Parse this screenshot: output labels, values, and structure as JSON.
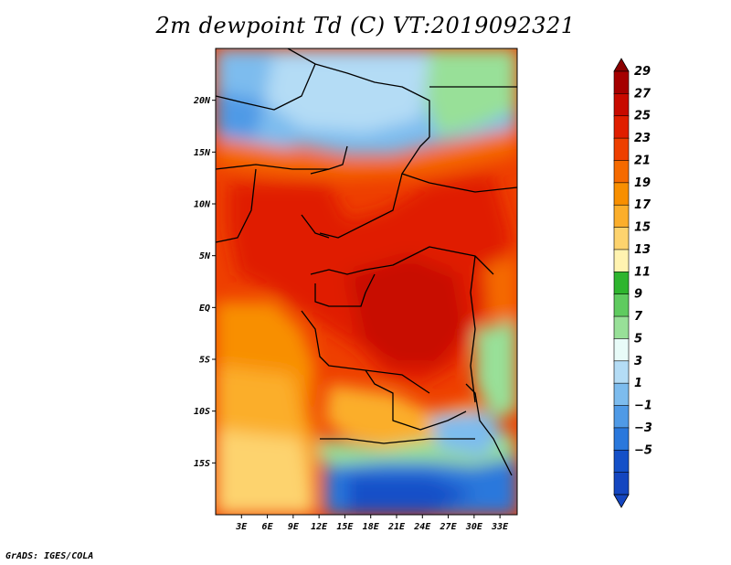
{
  "title": "2m dewpoint Td (C) VT:2019092321",
  "credit": "GrADS: IGES/COLA",
  "map": {
    "lon_range": [
      0,
      35
    ],
    "lat_range": [
      -20,
      25
    ],
    "lat_ticks": [
      {
        "value": 20,
        "label": "20N"
      },
      {
        "value": 15,
        "label": "15N"
      },
      {
        "value": 10,
        "label": "10N"
      },
      {
        "value": 5,
        "label": "5N"
      },
      {
        "value": 0,
        "label": "EQ"
      },
      {
        "value": -5,
        "label": "5S"
      },
      {
        "value": -10,
        "label": "10S"
      },
      {
        "value": -15,
        "label": "15S"
      }
    ],
    "lon_ticks": [
      {
        "value": 3,
        "label": "3E"
      },
      {
        "value": 6,
        "label": "6E"
      },
      {
        "value": 9,
        "label": "9E"
      },
      {
        "value": 12,
        "label": "12E"
      },
      {
        "value": 15,
        "label": "15E"
      },
      {
        "value": 18,
        "label": "18E"
      },
      {
        "value": 21,
        "label": "21E"
      },
      {
        "value": 24,
        "label": "24E"
      },
      {
        "value": 27,
        "label": "27E"
      },
      {
        "value": 30,
        "label": "30E"
      },
      {
        "value": 33,
        "label": "33E"
      }
    ]
  },
  "colorbar": {
    "labels": [
      "29",
      "27",
      "25",
      "23",
      "21",
      "19",
      "17",
      "15",
      "13",
      "11",
      "9",
      "7",
      "5",
      "3",
      "1",
      "−1",
      "−3",
      "−5"
    ],
    "colors": [
      "#a50000",
      "#c80a00",
      "#e01e00",
      "#ee3f00",
      "#f56a00",
      "#f88f00",
      "#fbae2b",
      "#fdd36e",
      "#fff3b0",
      "#2eb52e",
      "#5fcb5f",
      "#98e098",
      "#e8fbf8",
      "#b4dcf5",
      "#7dbcee",
      "#4f9ae6",
      "#2a78dc",
      "#1450c8"
    ]
  }
}
